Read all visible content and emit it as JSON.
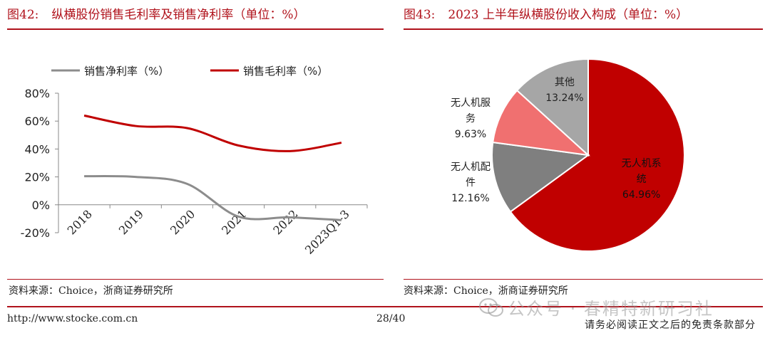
{
  "left_figure": {
    "number": "图42:",
    "title": "纵横股份销售毛利率及销售净利率（单位：%）",
    "source": "资料来源：Choice，浙商证券研究所"
  },
  "right_figure": {
    "number": "图43:",
    "title": "2023 上半年纵横股份收入构成（单位：%）",
    "source": "资料来源：Choice，浙商证券研究所"
  },
  "footer": {
    "url": "http://www.stocke.com.cn",
    "page": "28/40",
    "note": "请务必阅读正文之后的免责条款部分",
    "watermark": "公众号 · 春精特新研习社"
  },
  "colors": {
    "brand_red": "#b0121b",
    "net_margin_line": "#8c8c8c",
    "gross_margin_line": "#c00000",
    "pie_systems": "#c00000",
    "pie_parts": "#7f7f7f",
    "pie_services": "#f07070",
    "pie_other": "#a6a6a6"
  },
  "chart_data": [
    {
      "type": "line",
      "categories": [
        "2018",
        "2019",
        "2020",
        "2021",
        "2022",
        "2023Q1-3"
      ],
      "series": [
        {
          "name": "销售净利率（%）",
          "values": [
            20.5,
            20.0,
            15.0,
            -8.5,
            -9.0,
            -11.0
          ]
        },
        {
          "name": "销售毛利率（%）",
          "values": [
            64.0,
            56.5,
            55.0,
            42.5,
            38.5,
            44.5
          ]
        }
      ],
      "ylim": [
        -20,
        80
      ],
      "yticks": [
        "80%",
        "60%",
        "40%",
        "20%",
        "0%",
        "-20%"
      ],
      "grid": false,
      "legend_position": "top"
    },
    {
      "type": "pie",
      "slices": [
        {
          "label_lines": [
            "无人机系",
            "统"
          ],
          "pct_label": "64.96%",
          "value": 64.96
        },
        {
          "label_lines": [
            "无人机配",
            "件"
          ],
          "pct_label": "12.16%",
          "value": 12.16
        },
        {
          "label_lines": [
            "无人机服",
            "务"
          ],
          "pct_label": "9.63%",
          "value": 9.63
        },
        {
          "label_lines": [
            "其他"
          ],
          "pct_label": "13.24%",
          "value": 13.24
        }
      ]
    }
  ]
}
